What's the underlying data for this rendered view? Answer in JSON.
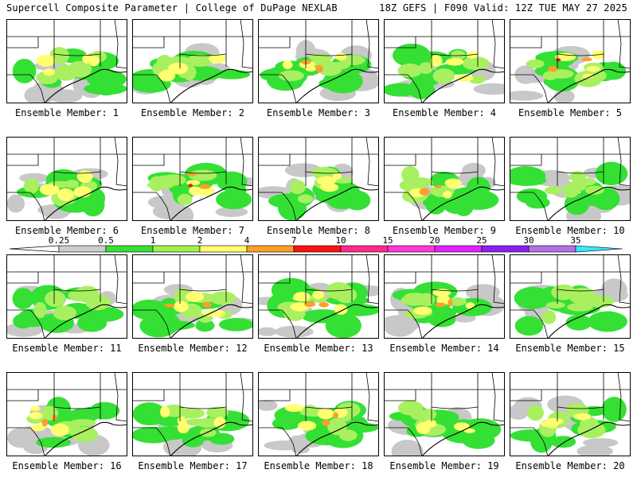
{
  "header": {
    "title_left": "Supercell Composite Parameter | College of DuPage NEXLAB",
    "title_right": "18Z GEFS | F090 Valid: 12Z TUE MAY 27 2025"
  },
  "colorbar": {
    "labels": [
      "0.25",
      "0.5",
      "1",
      "2",
      "4",
      "7",
      "10",
      "15",
      "20",
      "25",
      "30",
      "35"
    ],
    "colors": [
      "#cccccc",
      "#34e034",
      "#a0f050",
      "#ffff70",
      "#ff9e28",
      "#ff1010",
      "#ff2a8c",
      "#ff38d8",
      "#e020ff",
      "#8a20f0",
      "#b070e8",
      "#38e8ff"
    ]
  },
  "map_colors": {
    "land": "#ffffff",
    "gray": "#c8c8c8",
    "green": "#34e034",
    "lightgreen": "#a8f060",
    "yellow": "#ffff70",
    "orange": "#ff9e28",
    "red": "#ff1010",
    "magenta": "#ff38d8",
    "border": "#000000"
  },
  "members": [
    {
      "label": "Ensemble Member: 1",
      "intensity": 2
    },
    {
      "label": "Ensemble Member: 2",
      "intensity": 2
    },
    {
      "label": "Ensemble Member: 3",
      "intensity": 3
    },
    {
      "label": "Ensemble Member: 4",
      "intensity": 2
    },
    {
      "label": "Ensemble Member: 5",
      "intensity": 4
    },
    {
      "label": "Ensemble Member: 6",
      "intensity": 2
    },
    {
      "label": "Ensemble Member: 7",
      "intensity": 4
    },
    {
      "label": "Ensemble Member: 8",
      "intensity": 2
    },
    {
      "label": "Ensemble Member: 9",
      "intensity": 3
    },
    {
      "label": "Ensemble Member: 10",
      "intensity": 1
    },
    {
      "label": "Ensemble Member: 11",
      "intensity": 1
    },
    {
      "label": "Ensemble Member: 12",
      "intensity": 3
    },
    {
      "label": "Ensemble Member: 13",
      "intensity": 3
    },
    {
      "label": "Ensemble Member: 14",
      "intensity": 3
    },
    {
      "label": "Ensemble Member: 15",
      "intensity": 1
    },
    {
      "label": "Ensemble Member: 16",
      "intensity": 3
    },
    {
      "label": "Ensemble Member: 17",
      "intensity": 2
    },
    {
      "label": "Ensemble Member: 18",
      "intensity": 3
    },
    {
      "label": "Ensemble Member: 19",
      "intensity": 2
    },
    {
      "label": "Ensemble Member: 20",
      "intensity": 2
    }
  ]
}
